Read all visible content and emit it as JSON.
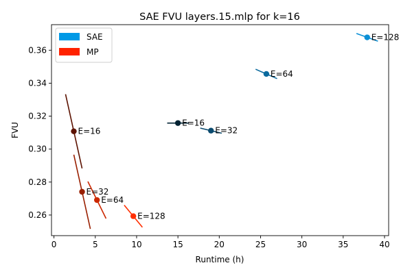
{
  "chart_data": {
    "type": "scatter",
    "title": "SAE FVU layers.15.mlp for k=16",
    "xlabel": "Runtime (h)",
    "ylabel": "FVU",
    "xlim": [
      -0.3,
      40.5
    ],
    "ylim": [
      0.2475,
      0.3755
    ],
    "xticks": [
      0,
      5,
      10,
      15,
      20,
      25,
      30,
      35,
      40
    ],
    "yticks": [
      0.26,
      0.28,
      0.3,
      0.32,
      0.34,
      0.36
    ],
    "ytick_labels": [
      "0.26",
      "0.28",
      "0.30",
      "0.32",
      "0.34",
      "0.36"
    ],
    "grid": false,
    "legend": {
      "position": "top-left",
      "entries": [
        {
          "name": "SAE",
          "color": "#0099e6"
        },
        {
          "name": "MP",
          "color": "#ff2200"
        }
      ]
    },
    "series": [
      {
        "name": "SAE",
        "points": [
          {
            "x": 15.0,
            "y": 0.3158,
            "label": "E=16",
            "color": "#002233",
            "slope": 0.0
          },
          {
            "x": 19.0,
            "y": 0.3112,
            "label": "E=32",
            "color": "#0a4a6e",
            "slope": -0.0012
          },
          {
            "x": 25.7,
            "y": 0.3456,
            "label": "E=64",
            "color": "#0b6a9e",
            "slope": -0.0022
          },
          {
            "x": 37.9,
            "y": 0.3678,
            "label": "E=128",
            "color": "#0a8fd6",
            "slope": -0.0018
          }
        ]
      },
      {
        "name": "MP",
        "points": [
          {
            "x": 2.4,
            "y": 0.3108,
            "label": "E=16",
            "color": "#5c1200",
            "slope": -0.0225
          },
          {
            "x": 3.4,
            "y": 0.2741,
            "label": "E=32",
            "color": "#991f00",
            "slope": -0.0225
          },
          {
            "x": 5.2,
            "y": 0.2691,
            "label": "E=64",
            "color": "#cc2800",
            "slope": -0.0102
          },
          {
            "x": 9.6,
            "y": 0.2593,
            "label": "E=128",
            "color": "#ff2e00",
            "slope": -0.0061
          }
        ]
      }
    ]
  }
}
